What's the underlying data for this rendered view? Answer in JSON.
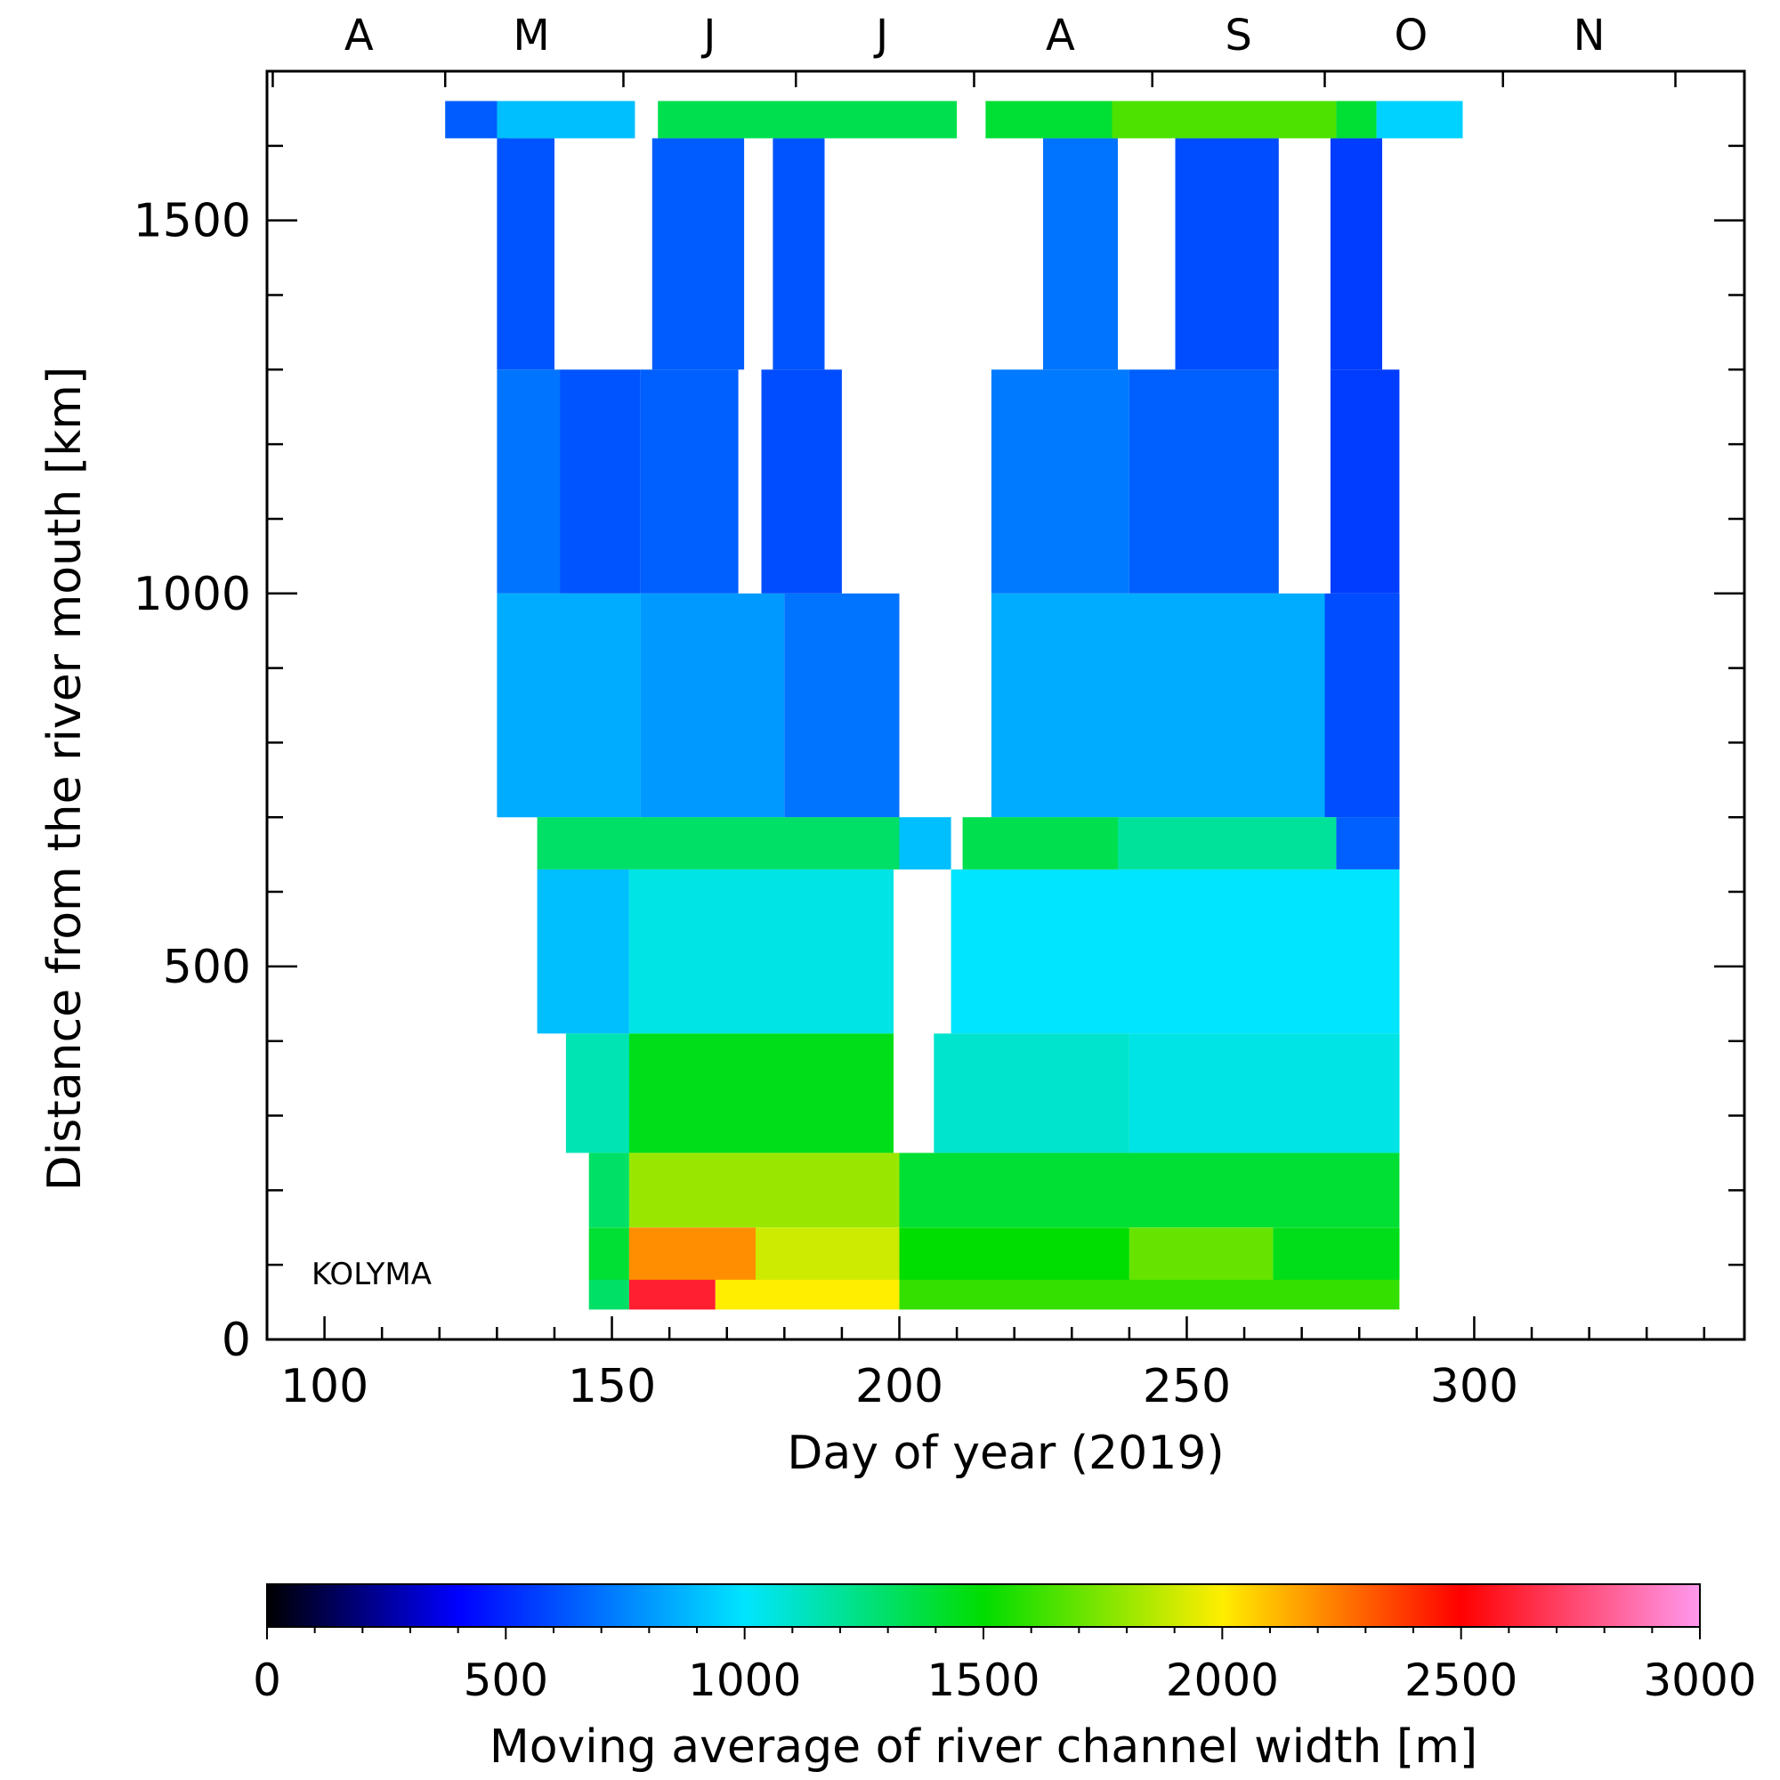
{
  "chart_data": {
    "type": "heatmap",
    "title": "",
    "xlabel": "Day of year (2019)",
    "ylabel": "Distance from the river mouth [km]",
    "xlim": [
      90,
      347
    ],
    "ylim": [
      0,
      1700
    ],
    "xticks": [
      100,
      150,
      200,
      250,
      300
    ],
    "yticks": [
      0,
      500,
      1000,
      1500
    ],
    "month_labels": [
      "A",
      "M",
      "J",
      "J",
      "A",
      "S",
      "O",
      "N"
    ],
    "month_label_days": [
      106,
      136,
      167,
      197,
      228,
      259,
      289,
      320
    ],
    "annotation": "KOLYMA",
    "colorbar": {
      "label": "Moving average of river channel width [m]",
      "range": [
        0,
        3000
      ],
      "ticks": [
        0,
        500,
        1000,
        1500,
        2000,
        2500,
        3000
      ],
      "colormap_stops": [
        {
          "value": 0,
          "color": "#000000"
        },
        {
          "value": 400,
          "color": "#0000ff"
        },
        {
          "value": 1000,
          "color": "#00e5ff"
        },
        {
          "value": 1500,
          "color": "#00dd00"
        },
        {
          "value": 2000,
          "color": "#ffee00"
        },
        {
          "value": 2500,
          "color": "#ff0000"
        },
        {
          "value": 3000,
          "color": "#ff99ee"
        }
      ]
    },
    "layers": [
      {
        "y": [
          1610,
          1660
        ],
        "spans": [
          [
            121,
            132,
            640
          ],
          [
            130,
            154,
            900
          ],
          [
            158,
            210,
            1350
          ],
          [
            215,
            237,
            1400
          ],
          [
            237,
            276,
            1650
          ],
          [
            276,
            283,
            1400
          ],
          [
            283,
            298,
            950
          ]
        ]
      },
      {
        "y": [
          1300,
          1610
        ],
        "spans": [
          [
            130,
            140,
            620
          ],
          [
            157,
            173,
            640
          ],
          [
            178,
            187,
            620
          ],
          [
            225,
            238,
            700
          ],
          [
            248,
            266,
            600
          ],
          [
            275,
            284,
            560
          ]
        ]
      },
      {
        "y": [
          1000,
          1300
        ],
        "spans": [
          [
            130,
            141,
            700
          ],
          [
            141,
            155,
            620
          ],
          [
            155,
            172,
            650
          ],
          [
            176,
            190,
            600
          ],
          [
            216,
            240,
            720
          ],
          [
            240,
            266,
            650
          ],
          [
            275,
            287,
            560
          ]
        ]
      },
      {
        "y": [
          700,
          1000
        ],
        "spans": [
          [
            130,
            155,
            850
          ],
          [
            155,
            180,
            800
          ],
          [
            180,
            200,
            700
          ],
          [
            216,
            274,
            850
          ],
          [
            274,
            287,
            600
          ]
        ]
      },
      {
        "y": [
          630,
          700
        ],
        "spans": [
          [
            137,
            200,
            1300
          ],
          [
            200,
            209,
            900
          ],
          [
            211,
            238,
            1350
          ],
          [
            238,
            276,
            1200
          ],
          [
            276,
            287,
            650
          ]
        ]
      },
      {
        "y": [
          410,
          630
        ],
        "spans": [
          [
            137,
            153,
            900
          ],
          [
            153,
            199,
            1050
          ],
          [
            209,
            287,
            1000
          ]
        ]
      },
      {
        "y": [
          250,
          410
        ],
        "spans": [
          [
            142,
            153,
            1150
          ],
          [
            153,
            199,
            1450
          ],
          [
            206,
            240,
            1100
          ],
          [
            240,
            287,
            1050
          ]
        ]
      },
      {
        "y": [
          150,
          250
        ],
        "spans": [
          [
            146,
            153,
            1300
          ],
          [
            153,
            200,
            1800
          ],
          [
            200,
            287,
            1400
          ]
        ]
      },
      {
        "y": [
          80,
          150
        ],
        "spans": [
          [
            146,
            153,
            1400
          ],
          [
            153,
            175,
            2200
          ],
          [
            175,
            200,
            1900
          ],
          [
            200,
            240,
            1500
          ],
          [
            240,
            265,
            1700
          ],
          [
            265,
            287,
            1450
          ]
        ]
      },
      {
        "y": [
          40,
          80
        ],
        "spans": [
          [
            146,
            153,
            1300
          ],
          [
            153,
            168,
            2600
          ],
          [
            168,
            200,
            2000
          ],
          [
            200,
            287,
            1600
          ]
        ]
      }
    ]
  }
}
